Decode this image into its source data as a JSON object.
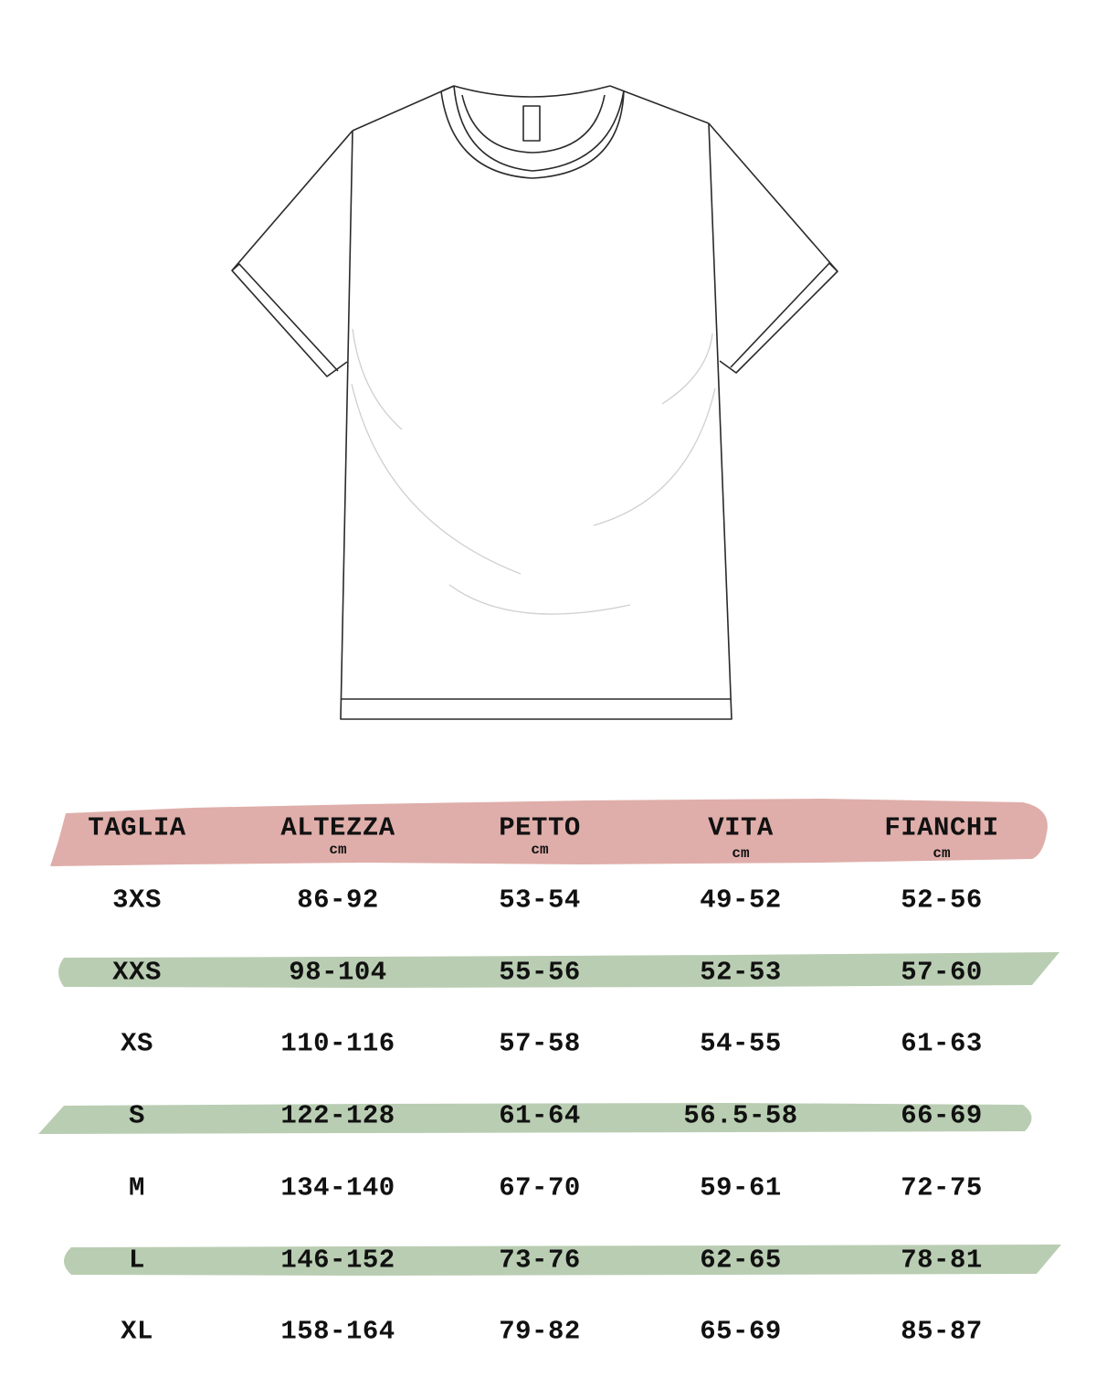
{
  "colors": {
    "header_band": "#dfaeaa",
    "row_band": "#b9cdb2",
    "outline": "#2a2a2a"
  },
  "illustration": "t-shirt-outline",
  "table": {
    "headers": [
      {
        "label": "TAGLIA",
        "unit": ""
      },
      {
        "label": "ALTEZZA",
        "unit": "cm"
      },
      {
        "label": "PETTO",
        "unit": "cm"
      },
      {
        "label": "VITA",
        "unit": "cm"
      },
      {
        "label": "FIANCHI",
        "unit": "cm"
      }
    ],
    "rows": [
      [
        "3XS",
        "86-92",
        "53-54",
        "49-52",
        "52-56"
      ],
      [
        "XXS",
        "98-104",
        "55-56",
        "52-53",
        "57-60"
      ],
      [
        "XS",
        "110-116",
        "57-58",
        "54-55",
        "61-63"
      ],
      [
        "S",
        "122-128",
        "61-64",
        "56.5-58",
        "66-69"
      ],
      [
        "M",
        "134-140",
        "67-70",
        "59-61",
        "72-75"
      ],
      [
        "L",
        "146-152",
        "73-76",
        "62-65",
        "78-81"
      ],
      [
        "XL",
        "158-164",
        "79-82",
        "65-69",
        "85-87"
      ]
    ]
  }
}
